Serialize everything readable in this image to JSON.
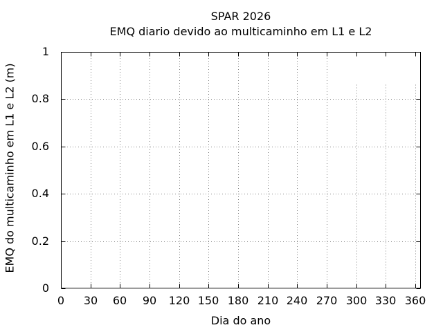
{
  "chart_data": {
    "type": "line",
    "title": "SPAR 2026",
    "subtitle": "EMQ diario devido ao multicaminho em L1 e L2",
    "xlabel": "Dia do ano",
    "ylabel": "EMQ do multicaminho em L1 e L2 (m)",
    "x_ticks": [
      0,
      30,
      60,
      90,
      120,
      150,
      180,
      210,
      240,
      270,
      300,
      330,
      360
    ],
    "y_ticks": [
      "0",
      "0.2",
      "0.4",
      "0.6",
      "0.8",
      "1"
    ],
    "xlim": [
      0,
      366
    ],
    "ylim": [
      0,
      1
    ],
    "grid": "dotted",
    "legend": {
      "position": "top-right",
      "visible_entries": 0
    },
    "series": []
  },
  "colors": {
    "background": "#ffffff",
    "axis": "#000000",
    "grid": "#808080",
    "text": "#000000"
  }
}
